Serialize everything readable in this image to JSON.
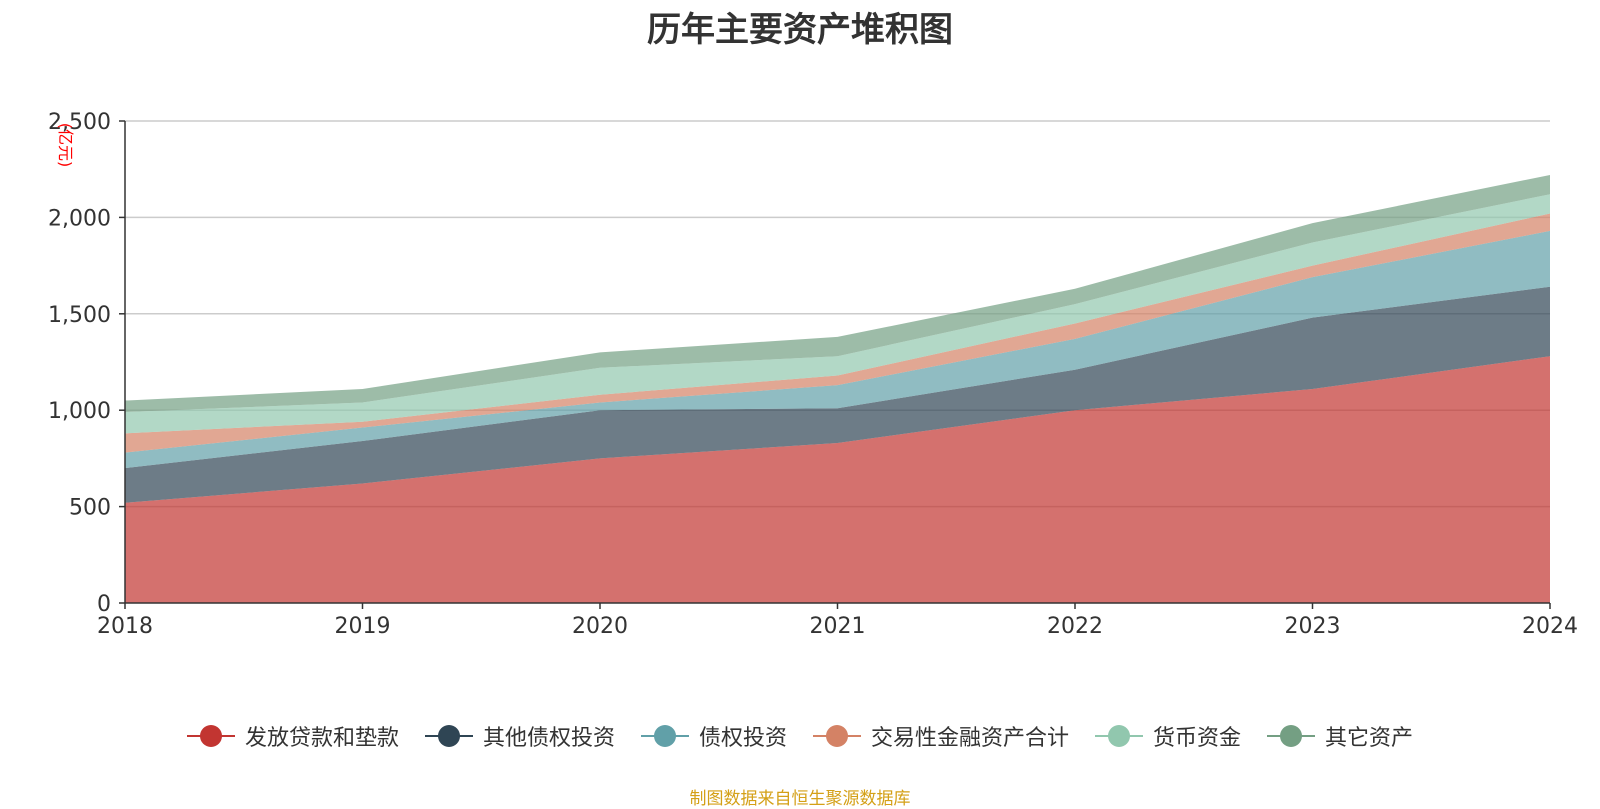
{
  "chart_data": {
    "type": "area",
    "title": "历年主要资产堆积图",
    "ylabel": "(亿元)",
    "xlabel": "",
    "x": [
      "2018",
      "2019",
      "2020",
      "2021",
      "2022",
      "2023",
      "2024"
    ],
    "ylim": [
      0,
      2500
    ],
    "yticks": [
      "0",
      "500",
      "1,000",
      "1,500",
      "2,000",
      "2,500"
    ],
    "stacked": true,
    "grid": true,
    "legend_position": "bottom",
    "series": [
      {
        "name": "发放贷款和垫款",
        "color": "#c23531",
        "values": [
          520,
          620,
          750,
          830,
          1000,
          1110,
          1280
        ]
      },
      {
        "name": "其他债权投资",
        "color": "#2f4554",
        "values": [
          180,
          220,
          250,
          180,
          210,
          370,
          360
        ]
      },
      {
        "name": "债权投资",
        "color": "#61a0a8",
        "values": [
          80,
          70,
          40,
          120,
          160,
          210,
          290
        ]
      },
      {
        "name": "交易性金融资产合计",
        "color": "#d48265",
        "values": [
          100,
          30,
          40,
          50,
          80,
          60,
          90
        ]
      },
      {
        "name": "货币资金",
        "color": "#91c7ae",
        "values": [
          110,
          100,
          140,
          100,
          100,
          120,
          100
        ]
      },
      {
        "name": "其它资产",
        "color": "#749f83",
        "values": [
          60,
          70,
          80,
          100,
          80,
          100,
          100
        ]
      }
    ],
    "source": "制图数据来自恒生聚源数据库"
  }
}
